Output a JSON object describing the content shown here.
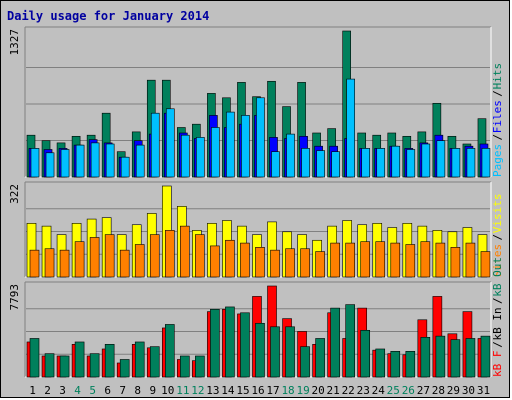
{
  "title": "Daily usage for January 2014",
  "colors": {
    "hits": "#00805c",
    "files": "#0000ff",
    "pages": "#00c0ff",
    "visits": "#ffff00",
    "sites": "#ff8000",
    "kbout": "#00805c",
    "kbf": "#ff0000",
    "weekend_day": "#00805c",
    "weekday": "#000000",
    "grid": "#000000",
    "panel_bg": "#c0c0c0"
  },
  "chart_data": [
    {
      "type": "bar",
      "title": "Daily usage for January 2014",
      "ymax_label": "1327",
      "ylim": [
        0,
        1327
      ],
      "categories": [
        "1",
        "2",
        "3",
        "4",
        "5",
        "6",
        "7",
        "8",
        "9",
        "10",
        "11",
        "12",
        "13",
        "14",
        "15",
        "16",
        "17",
        "18",
        "19",
        "20",
        "21",
        "22",
        "23",
        "24",
        "25",
        "26",
        "27",
        "28",
        "29",
        "30",
        "31"
      ],
      "weekend": [
        "4",
        "5",
        "11",
        "12",
        "18",
        "19",
        "25",
        "26"
      ],
      "legend": [
        "Pages",
        "Files",
        "Hits"
      ],
      "series": [
        {
          "name": "Hits",
          "color": "#00805c",
          "values": [
            380,
            330,
            310,
            370,
            380,
            580,
            230,
            410,
            880,
            880,
            450,
            480,
            760,
            720,
            860,
            730,
            870,
            640,
            860,
            400,
            440,
            1327,
            400,
            380,
            400,
            370,
            410,
            670,
            370,
            300,
            530
          ]
        },
        {
          "name": "Files",
          "color": "#0000ff",
          "values": [
            260,
            250,
            260,
            290,
            340,
            310,
            180,
            330,
            390,
            580,
            400,
            350,
            560,
            450,
            480,
            560,
            360,
            350,
            370,
            280,
            280,
            350,
            260,
            260,
            280,
            260,
            310,
            380,
            260,
            280,
            300
          ]
        },
        {
          "name": "Pages",
          "color": "#00c0ff",
          "values": [
            260,
            220,
            250,
            290,
            310,
            300,
            180,
            290,
            580,
            620,
            380,
            360,
            450,
            590,
            560,
            720,
            230,
            390,
            260,
            240,
            230,
            890,
            260,
            260,
            280,
            250,
            300,
            330,
            260,
            260,
            260
          ]
        }
      ]
    },
    {
      "type": "bar",
      "ymax_label": "322",
      "ylim": [
        0,
        322
      ],
      "categories": [
        "1",
        "2",
        "3",
        "4",
        "5",
        "6",
        "7",
        "8",
        "9",
        "10",
        "11",
        "12",
        "13",
        "14",
        "15",
        "16",
        "17",
        "18",
        "19",
        "20",
        "21",
        "22",
        "23",
        "24",
        "25",
        "26",
        "27",
        "28",
        "29",
        "30",
        "31"
      ],
      "legend": [
        "Sites",
        "Visits"
      ],
      "series": [
        {
          "name": "Visits",
          "color": "#ffff00",
          "values": [
            190,
            180,
            150,
            190,
            205,
            210,
            150,
            185,
            225,
            322,
            250,
            165,
            190,
            200,
            180,
            150,
            195,
            160,
            150,
            130,
            180,
            200,
            185,
            190,
            175,
            190,
            180,
            165,
            160,
            175,
            150
          ]
        },
        {
          "name": "Sites",
          "color": "#ff8000",
          "values": [
            95,
            100,
            95,
            125,
            140,
            150,
            95,
            115,
            150,
            165,
            180,
            150,
            110,
            130,
            120,
            105,
            95,
            100,
            100,
            90,
            120,
            120,
            125,
            125,
            120,
            115,
            125,
            120,
            105,
            120,
            90
          ]
        }
      ]
    },
    {
      "type": "bar",
      "ymax_label": "7793",
      "ylim": [
        0,
        7793
      ],
      "categories": [
        "1",
        "2",
        "3",
        "4",
        "5",
        "6",
        "7",
        "8",
        "9",
        "10",
        "11",
        "12",
        "13",
        "14",
        "15",
        "16",
        "17",
        "18",
        "19",
        "20",
        "21",
        "22",
        "23",
        "24",
        "25",
        "26",
        "27",
        "28",
        "29",
        "30",
        "31"
      ],
      "legend": [
        "kB F",
        "kB In",
        "kB Out"
      ],
      "series": [
        {
          "name": "kB F",
          "color": "#ff0000",
          "values": [
            3000,
            1800,
            1800,
            2800,
            1800,
            2400,
            1200,
            2800,
            2500,
            4200,
            1500,
            1400,
            5600,
            5800,
            5400,
            6900,
            7793,
            5000,
            3900,
            2800,
            5500,
            3300,
            5900,
            2300,
            2000,
            1900,
            4900,
            6900,
            3700,
            5600,
            3300
          ]
        },
        {
          "name": "kB Out",
          "color": "#00805c",
          "values": [
            3300,
            2000,
            1800,
            3000,
            2000,
            2800,
            1500,
            3000,
            2600,
            4500,
            1800,
            1800,
            5800,
            6000,
            5500,
            4600,
            4300,
            4300,
            2600,
            3300,
            5900,
            6200,
            4000,
            2400,
            2200,
            2200,
            3400,
            3500,
            3200,
            3300,
            3500
          ]
        }
      ]
    }
  ]
}
